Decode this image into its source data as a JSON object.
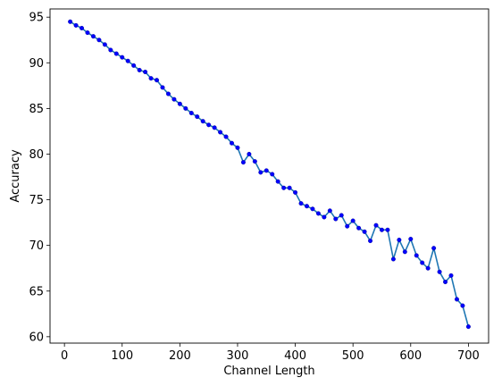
{
  "chart_data": {
    "type": "line",
    "title": "",
    "xlabel": "Channel Length",
    "ylabel": "Accuracy",
    "xlim": [
      -25,
      735
    ],
    "ylim": [
      59.3,
      95.9
    ],
    "xticks": [
      0,
      100,
      200,
      300,
      400,
      500,
      600,
      700
    ],
    "yticks": [
      60,
      65,
      70,
      75,
      80,
      85,
      90,
      95
    ],
    "grid": false,
    "legend": "none",
    "colors": {
      "line": "#1f77b4",
      "marker": "#0000ff"
    },
    "series": [
      {
        "x": [
          10,
          20,
          30,
          40,
          50,
          60,
          70,
          80,
          90,
          100,
          110,
          120,
          130,
          140,
          150,
          160,
          170,
          180,
          190,
          200,
          210,
          220,
          230,
          240,
          250,
          260,
          270,
          280,
          290,
          300,
          310,
          320,
          330,
          340,
          350,
          360,
          370,
          380,
          390,
          400,
          410,
          420,
          430,
          440,
          450,
          460,
          470,
          480,
          490,
          500,
          510,
          520,
          530,
          540,
          550,
          560,
          570,
          580,
          590,
          600,
          610,
          620,
          630,
          640,
          650,
          660,
          670,
          680,
          690,
          700
        ],
        "y": [
          94.5,
          94.1,
          93.8,
          93.3,
          92.9,
          92.5,
          92.0,
          91.4,
          91.0,
          90.6,
          90.2,
          89.7,
          89.2,
          89.0,
          88.3,
          88.1,
          87.3,
          86.6,
          86.0,
          85.5,
          85.0,
          84.5,
          84.1,
          83.6,
          83.2,
          82.9,
          82.4,
          81.9,
          81.2,
          80.7,
          79.1,
          80.0,
          79.2,
          78.0,
          78.2,
          77.8,
          77.0,
          76.3,
          76.3,
          75.8,
          74.6,
          74.3,
          74.0,
          73.5,
          73.1,
          73.8,
          72.9,
          73.3,
          72.1,
          72.7,
          71.9,
          71.5,
          70.5,
          72.2,
          71.7,
          71.7,
          68.5,
          70.6,
          69.3,
          70.7,
          68.9,
          68.1,
          67.5,
          69.7,
          67.1,
          66.0,
          66.7,
          64.1,
          63.4,
          61.1
        ]
      }
    ]
  }
}
